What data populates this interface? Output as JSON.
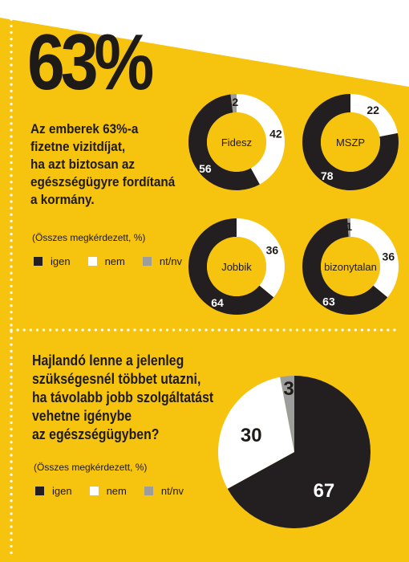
{
  "headline": {
    "percent": "63%",
    "text_lines": [
      "Az emberek 63%-a",
      "fizetne vizitdíjat,",
      "ha azt biztosan az",
      "egészségügyre fordítaná",
      "a kormány."
    ],
    "note": "(Összes megkérdezett, %)"
  },
  "question2": {
    "text_lines": [
      "Hajlandó lenne a jelenleg",
      "szükségesnél többet utazni,",
      "ha távolabb jobb szolgáltatást",
      "vehetne igénybe",
      "az egészségügyben?"
    ],
    "note": "(Összes megkérdezett, %)"
  },
  "legend": {
    "items": [
      {
        "label": "igen",
        "color": "#231f20"
      },
      {
        "label": "nem",
        "color": "#ffffff"
      },
      {
        "label": "nt/nv",
        "color": "#9d9d9b"
      }
    ]
  },
  "colors": {
    "background": "#f6c30f",
    "yes": "#231f20",
    "no": "#ffffff",
    "dk": "#9d9d9b",
    "text": "#1e1a17"
  },
  "chart_data": [
    {
      "type": "pie",
      "variant": "donut",
      "center_label": "Fidesz",
      "categories": [
        "igen",
        "nem",
        "nt/nv"
      ],
      "values": [
        56,
        42,
        2
      ]
    },
    {
      "type": "pie",
      "variant": "donut",
      "center_label": "MSZP",
      "categories": [
        "igen",
        "nem",
        "nt/nv"
      ],
      "values": [
        78,
        22,
        0
      ],
      "value_labels": [
        "78",
        "22",
        ""
      ]
    },
    {
      "type": "pie",
      "variant": "donut",
      "center_label": "Jobbik",
      "categories": [
        "igen",
        "nem",
        "nt/nv"
      ],
      "values": [
        64,
        36,
        0
      ],
      "value_labels": [
        "64",
        "36",
        ""
      ]
    },
    {
      "type": "pie",
      "variant": "donut",
      "center_label": "bizonytalan",
      "categories": [
        "igen",
        "nem",
        "nt/nv"
      ],
      "values": [
        63,
        36,
        1
      ]
    },
    {
      "type": "pie",
      "categories": [
        "igen",
        "nem",
        "nt/nv"
      ],
      "values": [
        67,
        30,
        3
      ]
    }
  ]
}
